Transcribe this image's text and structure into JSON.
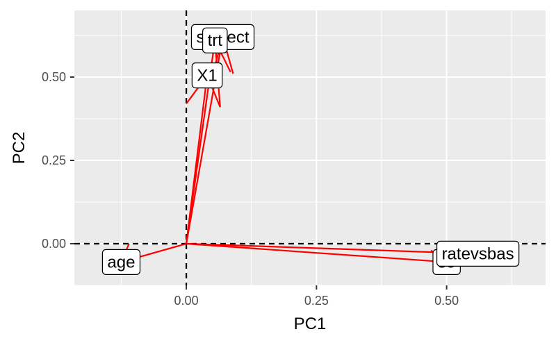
{
  "chart_data": {
    "type": "biplot",
    "xlabel": "PC1",
    "ylabel": "PC2",
    "xlim": [
      -0.215,
      0.69
    ],
    "ylim": [
      -0.125,
      0.7
    ],
    "x_ticks": [
      0.0,
      0.25,
      0.5
    ],
    "x_tick_labels": [
      "0.00",
      "0.25",
      "0.50"
    ],
    "y_ticks": [
      0.0,
      0.25,
      0.5
    ],
    "y_tick_labels": [
      "0.00",
      "0.25",
      "0.50"
    ],
    "grid": true,
    "reference_lines": {
      "x": 0,
      "y": 0,
      "style": "dashed"
    },
    "arrow_color": "#ff0000",
    "panel_color": "#ebebeb",
    "loadings": [
      {
        "name": "subject",
        "label": "subject",
        "x": 0.07,
        "y": 0.62,
        "head_half": [
          [
            0.09,
            0.51
          ],
          [
            0.05,
            0.505
          ]
        ]
      },
      {
        "name": "trt",
        "label": "trt",
        "x": 0.055,
        "y": 0.61,
        "head_half": [
          [
            0.065,
            0.41
          ],
          [
            0.085,
            0.515
          ]
        ]
      },
      {
        "name": "X1",
        "label": "X1",
        "x": 0.04,
        "y": 0.505,
        "head_half": [
          [
            0.065,
            0.41
          ],
          [
            0.0,
            0.42
          ]
        ]
      },
      {
        "name": "age",
        "label": "age",
        "x": -0.125,
        "y": -0.055,
        "head_half": [
          [
            -0.11,
            -0.092
          ],
          [
            -0.11,
            0.0
          ]
        ]
      },
      {
        "name": "sex",
        "label": "se",
        "x": 0.5,
        "y": -0.055,
        "head_half": [
          [
            0.47,
            -0.02
          ],
          [
            0.5,
            -0.05
          ]
        ]
      },
      {
        "name": "ratevsbase",
        "label": "ratevsbas",
        "x": 0.56,
        "y": -0.03,
        "head_half": [
          [
            0.535,
            0.0
          ],
          [
            0.56,
            -0.03
          ]
        ]
      }
    ]
  }
}
